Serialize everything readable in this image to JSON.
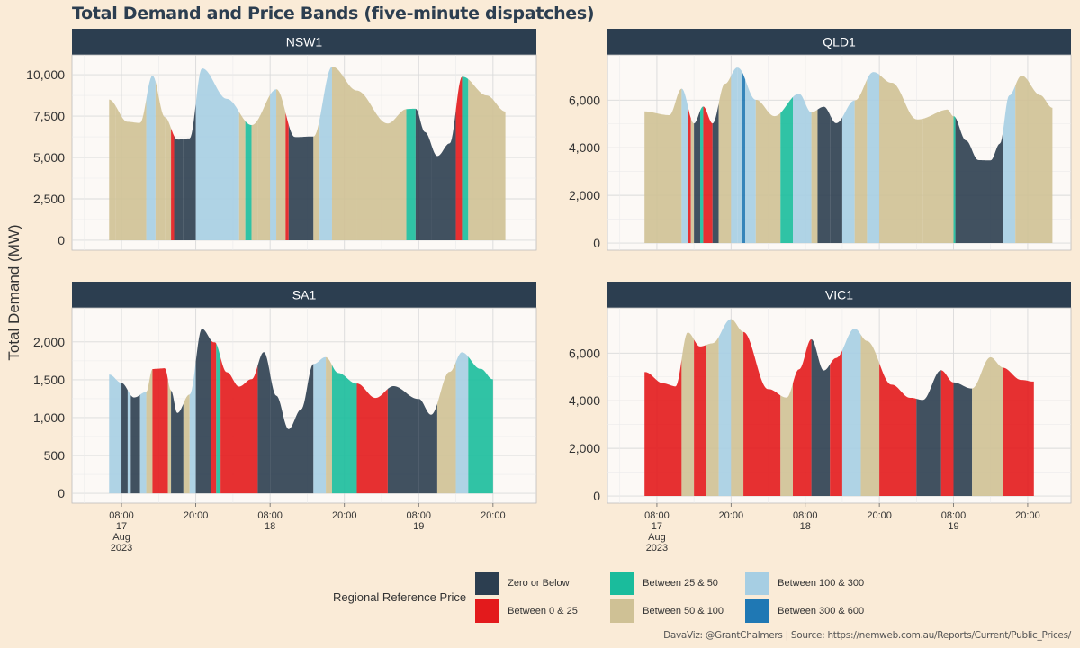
{
  "title": "Total Demand and Price Bands (five-minute dispatches)",
  "caption": "DavaViz: @GrantChalmers | Source: https://nemweb.com.au/Reports/Current/Public_Prices/",
  "colors": {
    "background": "#FAEBD7",
    "panel": "#FCF9F6",
    "strip": "#2C3E50",
    "grid": "#DADADA"
  },
  "chart_data": {
    "type": "bar",
    "ylabel": "Total Demand (MW)",
    "x_ticks": [
      {
        "time": "08:00",
        "lines": [
          "08:00",
          "17",
          "Aug",
          "2023"
        ],
        "hour": 8
      },
      {
        "time": "20:00",
        "lines": [
          "20:00"
        ],
        "hour": 20
      },
      {
        "time": "08:00",
        "lines": [
          "08:00",
          "18"
        ],
        "hour": 32
      },
      {
        "time": "20:00",
        "lines": [
          "20:00"
        ],
        "hour": 44
      },
      {
        "time": "08:00",
        "lines": [
          "08:00",
          "19"
        ],
        "hour": 56
      },
      {
        "time": "20:00",
        "lines": [
          "20:00"
        ],
        "hour": 68
      }
    ],
    "x_range_hours": [
      0,
      75
    ],
    "legend": {
      "title": "Regional Reference Price",
      "items": [
        {
          "label": "Zero or Below",
          "color": "#2C3E50"
        },
        {
          "label": "Between 0 & 25",
          "color": "#E31A1C"
        },
        {
          "label": "Between 25 & 50",
          "color": "#1ABC9C"
        },
        {
          "label": "Between 50 & 100",
          "color": "#CFC195"
        },
        {
          "label": "Between 100 & 300",
          "color": "#A6CEE3"
        },
        {
          "label": "Between 300 & 600",
          "color": "#1F78B4"
        }
      ]
    },
    "panels": [
      {
        "name": "NSW1",
        "ylim": [
          -600,
          11200
        ],
        "yticks": [
          0,
          2500,
          5000,
          7500,
          10000
        ],
        "ytick_labels": [
          "0",
          "2,500",
          "5,000",
          "7,500",
          "10,000"
        ],
        "demand_keys": [
          [
            0,
            8500
          ],
          [
            3,
            7200
          ],
          [
            5,
            7100
          ],
          [
            7,
            9900
          ],
          [
            9,
            7400
          ],
          [
            11,
            6100
          ],
          [
            13,
            6200
          ],
          [
            15,
            10400
          ],
          [
            19,
            8500
          ],
          [
            23,
            7000
          ],
          [
            27,
            9100
          ],
          [
            30,
            6200
          ],
          [
            33,
            6300
          ],
          [
            36,
            10500
          ],
          [
            40,
            9000
          ],
          [
            45,
            7100
          ],
          [
            48,
            7900
          ],
          [
            49.5,
            7900
          ],
          [
            51,
            6500
          ],
          [
            53,
            5100
          ],
          [
            55,
            5900
          ],
          [
            57,
            9900
          ],
          [
            61,
            8700
          ],
          [
            64,
            7800
          ]
        ],
        "bands": [
          [
            0,
            1,
            3
          ],
          [
            1,
            6,
            3
          ],
          [
            6,
            7.5,
            4
          ],
          [
            7.5,
            9,
            3
          ],
          [
            9,
            10,
            3
          ],
          [
            10,
            10.5,
            1
          ],
          [
            10.5,
            12,
            0
          ],
          [
            12,
            14,
            0
          ],
          [
            14,
            15,
            4
          ],
          [
            15,
            19,
            4
          ],
          [
            19,
            21,
            4
          ],
          [
            21,
            22,
            3
          ],
          [
            22,
            23,
            2
          ],
          [
            23,
            24,
            3
          ],
          [
            24,
            26,
            3
          ],
          [
            26,
            27,
            4
          ],
          [
            27,
            28.5,
            3
          ],
          [
            28.5,
            29,
            1
          ],
          [
            29,
            33,
            0
          ],
          [
            33,
            34,
            3
          ],
          [
            34,
            36,
            4
          ],
          [
            36,
            40,
            3
          ],
          [
            40,
            48,
            3
          ],
          [
            48,
            49.5,
            2
          ],
          [
            49.5,
            52,
            0
          ],
          [
            52,
            56,
            0
          ],
          [
            56,
            57,
            1
          ],
          [
            57,
            58,
            2
          ],
          [
            58,
            64,
            3
          ]
        ]
      },
      {
        "name": "QLD1",
        "ylim": [
          -300,
          7900
        ],
        "yticks": [
          0,
          2000,
          4000,
          6000
        ],
        "ytick_labels": [
          "0",
          "2,000",
          "4,000",
          "6,000"
        ],
        "demand_keys": [
          [
            0,
            5500
          ],
          [
            4,
            5400
          ],
          [
            6,
            6500
          ],
          [
            8,
            5000
          ],
          [
            9.5,
            5700
          ],
          [
            11,
            5000
          ],
          [
            13,
            6700
          ],
          [
            15,
            7400
          ],
          [
            18,
            6000
          ],
          [
            21,
            5300
          ],
          [
            25,
            6300
          ],
          [
            27,
            5500
          ],
          [
            29,
            5700
          ],
          [
            31,
            5000
          ],
          [
            34,
            6000
          ],
          [
            37,
            7200
          ],
          [
            40,
            6700
          ],
          [
            44,
            5200
          ],
          [
            49,
            5600
          ],
          [
            50,
            5300
          ],
          [
            52,
            4300
          ],
          [
            54,
            3500
          ],
          [
            56,
            3500
          ],
          [
            57.5,
            4200
          ],
          [
            59,
            6200
          ],
          [
            61,
            7000
          ],
          [
            64,
            6200
          ],
          [
            66,
            5700
          ]
        ],
        "bands": [
          [
            0,
            6,
            3
          ],
          [
            6,
            7,
            4
          ],
          [
            7,
            7.5,
            1
          ],
          [
            7.5,
            8,
            3
          ],
          [
            8,
            9,
            0
          ],
          [
            9,
            9.5,
            2
          ],
          [
            9.5,
            11,
            1
          ],
          [
            11,
            12,
            0
          ],
          [
            12,
            14,
            3
          ],
          [
            14,
            15,
            4
          ],
          [
            15,
            15.8,
            4
          ],
          [
            15.8,
            16.3,
            5
          ],
          [
            16.3,
            18,
            4
          ],
          [
            18,
            22,
            3
          ],
          [
            22,
            24,
            2
          ],
          [
            24,
            27,
            4
          ],
          [
            27,
            28,
            3
          ],
          [
            28,
            30,
            0
          ],
          [
            30,
            32,
            0
          ],
          [
            32,
            34,
            4
          ],
          [
            34,
            36,
            3
          ],
          [
            36,
            38,
            4
          ],
          [
            38,
            45,
            3
          ],
          [
            45,
            50,
            3
          ],
          [
            50,
            50.3,
            2
          ],
          [
            50.3,
            58,
            0
          ],
          [
            58,
            60,
            4
          ],
          [
            60,
            66,
            3
          ]
        ]
      },
      {
        "name": "SA1",
        "ylim": [
          -130,
          2450
        ],
        "yticks": [
          0,
          500,
          1000,
          1500,
          2000
        ],
        "ytick_labels": [
          "0",
          "500",
          "1,000",
          "1,500",
          "2,000"
        ],
        "demand_keys": [
          [
            0,
            1560
          ],
          [
            2,
            1450
          ],
          [
            4,
            1270
          ],
          [
            6,
            1350
          ],
          [
            7,
            1650
          ],
          [
            9,
            1650
          ],
          [
            10,
            1350
          ],
          [
            11,
            1050
          ],
          [
            13,
            1300
          ],
          [
            15,
            2180
          ],
          [
            17,
            2000
          ],
          [
            19,
            1600
          ],
          [
            21,
            1400
          ],
          [
            23,
            1500
          ],
          [
            25,
            1870
          ],
          [
            27,
            1300
          ],
          [
            29,
            850
          ],
          [
            31,
            1100
          ],
          [
            33,
            1700
          ],
          [
            35,
            1800
          ],
          [
            37,
            1600
          ],
          [
            40,
            1450
          ],
          [
            43,
            1250
          ],
          [
            46,
            1420
          ],
          [
            50,
            1250
          ],
          [
            52,
            1030
          ],
          [
            55,
            1600
          ],
          [
            57,
            1870
          ],
          [
            60,
            1650
          ],
          [
            62,
            1500
          ]
        ],
        "bands": [
          [
            0,
            2,
            4
          ],
          [
            2,
            3,
            0
          ],
          [
            3,
            3.5,
            4
          ],
          [
            3.5,
            5,
            0
          ],
          [
            5,
            6,
            4
          ],
          [
            6,
            7,
            3
          ],
          [
            7,
            9.5,
            1
          ],
          [
            9.5,
            10,
            3
          ],
          [
            10,
            12,
            0
          ],
          [
            12,
            13,
            3
          ],
          [
            13,
            14,
            4
          ],
          [
            14,
            16.5,
            0
          ],
          [
            16.5,
            17.3,
            1
          ],
          [
            17.3,
            18,
            2
          ],
          [
            18,
            24,
            1
          ],
          [
            24,
            26,
            0
          ],
          [
            26,
            33,
            0
          ],
          [
            33,
            35,
            4
          ],
          [
            35,
            36,
            3
          ],
          [
            36,
            40,
            2
          ],
          [
            40,
            45,
            1
          ],
          [
            45,
            50,
            0
          ],
          [
            50,
            53,
            0
          ],
          [
            53,
            56,
            3
          ],
          [
            56,
            58,
            4
          ],
          [
            58,
            62,
            2
          ]
        ]
      },
      {
        "name": "VIC1",
        "ylim": [
          -300,
          7900
        ],
        "yticks": [
          0,
          2000,
          4000,
          6000
        ],
        "ytick_labels": [
          "0",
          "2,000",
          "4,000",
          "6,000"
        ],
        "demand_keys": [
          [
            0,
            5200
          ],
          [
            3,
            4700
          ],
          [
            5,
            4600
          ],
          [
            7,
            6900
          ],
          [
            9,
            6300
          ],
          [
            11,
            6400
          ],
          [
            14,
            7400
          ],
          [
            16,
            6900
          ],
          [
            20,
            4500
          ],
          [
            23,
            4100
          ],
          [
            25,
            5300
          ],
          [
            27,
            6600
          ],
          [
            29,
            5300
          ],
          [
            31,
            5800
          ],
          [
            34,
            7000
          ],
          [
            36,
            6500
          ],
          [
            40,
            4700
          ],
          [
            43,
            4100
          ],
          [
            45,
            4000
          ],
          [
            48,
            5300
          ],
          [
            50,
            4800
          ],
          [
            53,
            4500
          ],
          [
            56,
            5800
          ],
          [
            58,
            5400
          ],
          [
            61,
            4900
          ],
          [
            63,
            4800
          ]
        ],
        "bands": [
          [
            0,
            6,
            1
          ],
          [
            6,
            8,
            3
          ],
          [
            8,
            10,
            1
          ],
          [
            10,
            12,
            3
          ],
          [
            12,
            14,
            4
          ],
          [
            14,
            16,
            3
          ],
          [
            16,
            22,
            1
          ],
          [
            22,
            24,
            3
          ],
          [
            24,
            27,
            1
          ],
          [
            27,
            30,
            0
          ],
          [
            30,
            32,
            1
          ],
          [
            32,
            35,
            4
          ],
          [
            35,
            38,
            3
          ],
          [
            38,
            44,
            1
          ],
          [
            44,
            48,
            0
          ],
          [
            48,
            50,
            1
          ],
          [
            50,
            53,
            0
          ],
          [
            53,
            58,
            3
          ],
          [
            58,
            63,
            1
          ]
        ]
      }
    ]
  }
}
